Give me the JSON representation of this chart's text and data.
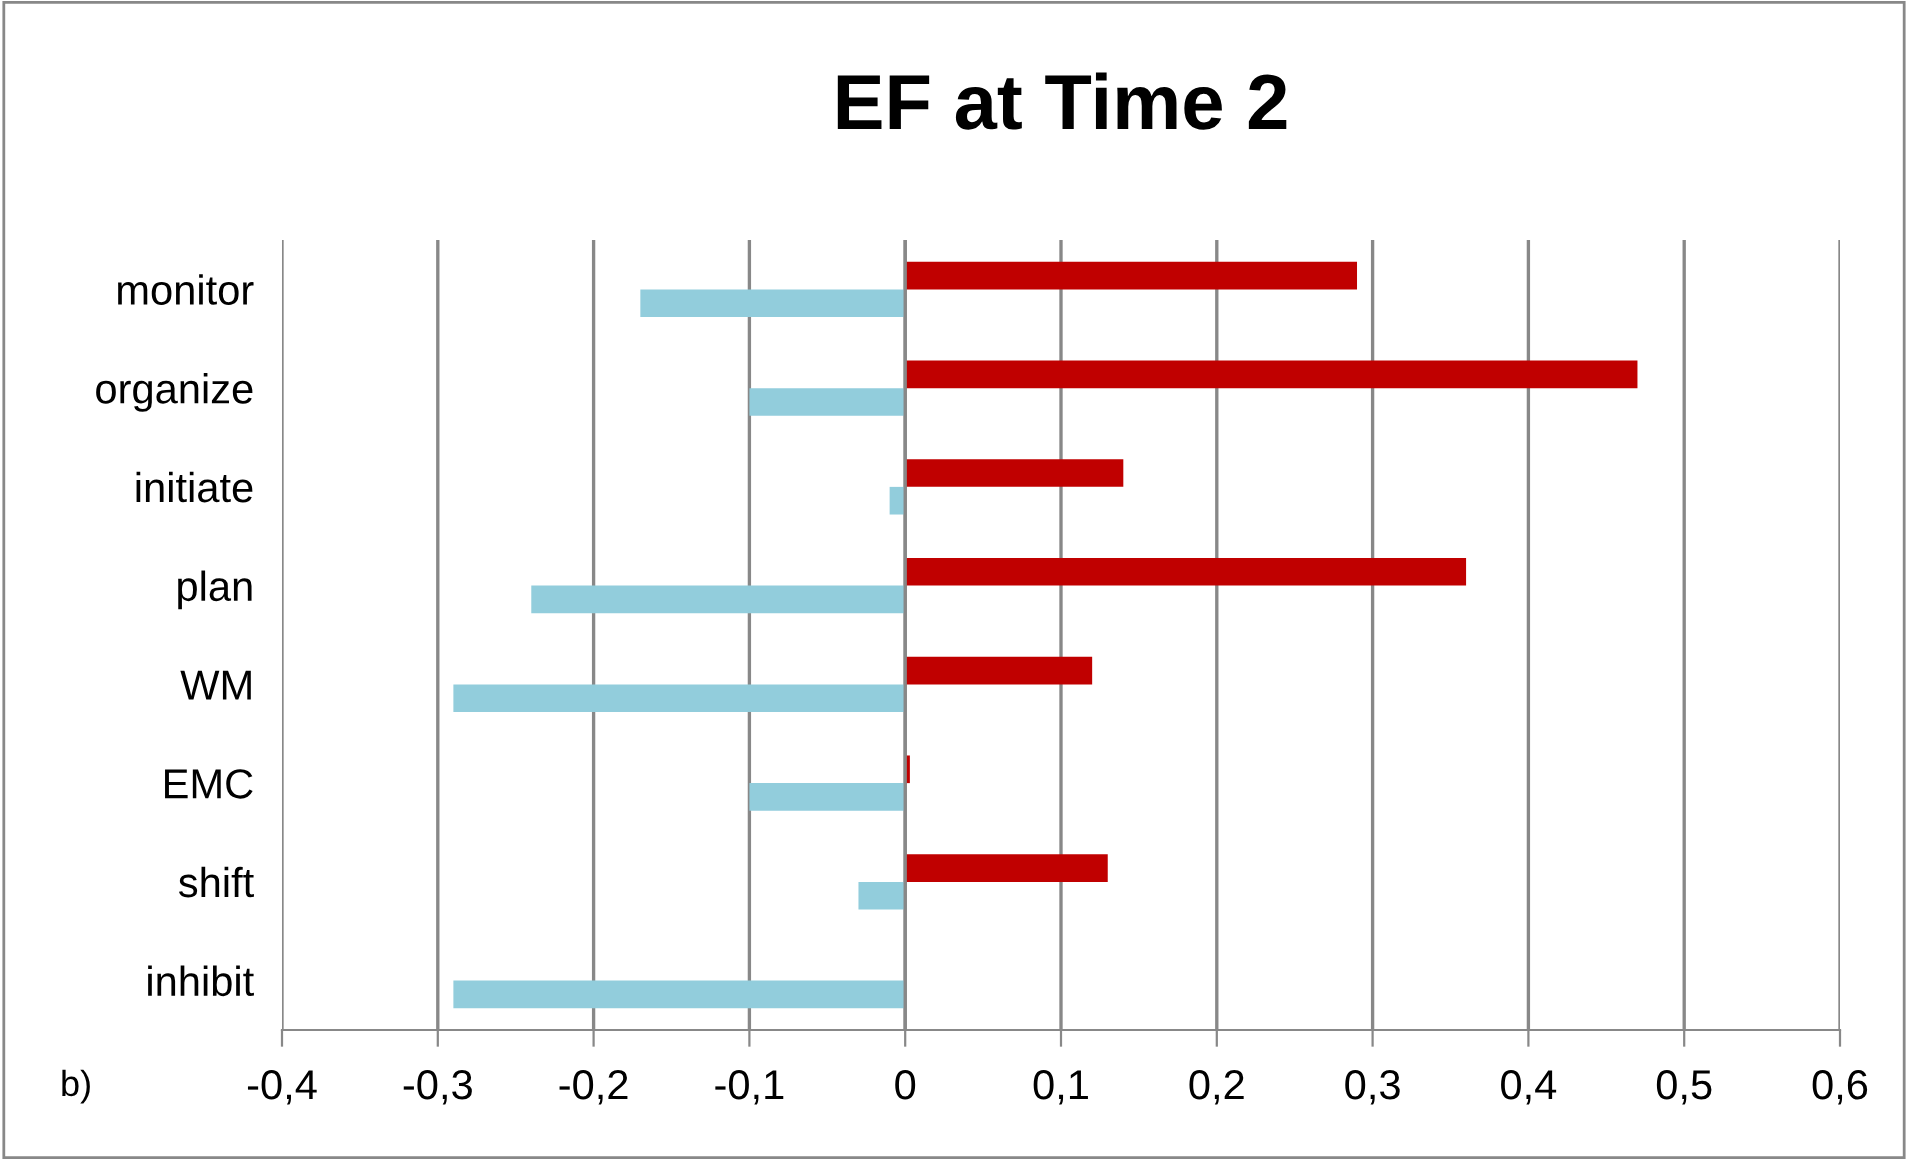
{
  "chart_data": {
    "type": "bar",
    "orientation": "horizontal",
    "title": "EF at Time 2",
    "categories": [
      "monitor",
      "organize",
      "initiate",
      "plan",
      "WM",
      "EMC",
      "shift",
      "inhibit"
    ],
    "series": [
      {
        "color": "#c00000",
        "values": [
          0.29,
          0.47,
          0.14,
          0.36,
          0.12,
          0.003,
          0.13,
          0.0
        ]
      },
      {
        "color": "#92cddc",
        "values": [
          -0.17,
          -0.1,
          -0.01,
          -0.24,
          -0.29,
          -0.1,
          -0.03,
          -0.29
        ]
      }
    ],
    "xlim": [
      -0.4,
      0.6
    ],
    "xticks": [
      {
        "value": -0.4,
        "label": "-0,4"
      },
      {
        "value": -0.3,
        "label": "-0,3"
      },
      {
        "value": -0.2,
        "label": "-0,2"
      },
      {
        "value": -0.1,
        "label": "-0,1"
      },
      0,
      {
        "value": 0.1,
        "label": "0,1"
      },
      {
        "value": 0.2,
        "label": "0,2"
      },
      {
        "value": 0.3,
        "label": "0,3"
      },
      {
        "value": 0.4,
        "label": "0,4"
      },
      {
        "value": 0.5,
        "label": "0,5"
      },
      {
        "value": 0.6,
        "label": "0,6"
      }
    ],
    "grid": "x",
    "annotations": [
      "b)"
    ]
  }
}
